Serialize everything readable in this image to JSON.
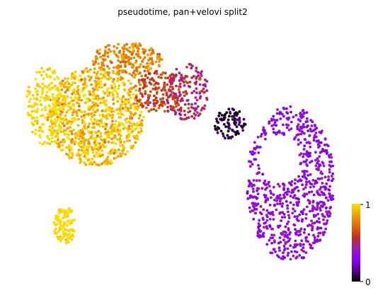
{
  "chart_data": {
    "type": "scatter",
    "title": "pseudotime, pan+velovi split2",
    "xlabel": "",
    "ylabel": "",
    "color_variable": "pseudotime",
    "color_range": [
      0,
      1
    ],
    "colormap": "gnuplot",
    "colorbar_ticks": [
      "0",
      "1"
    ],
    "colormap_stops": [
      "#000000",
      "#5a008f",
      "#8a00ff",
      "#a01ab0",
      "#c0301a",
      "#e06a00",
      "#f0a000",
      "#ffe000"
    ],
    "point_color_default": "#8a00ff",
    "clusters": [
      {
        "id": "upper-left-arm",
        "color_value": 0.92,
        "approx_points": 900
      },
      {
        "id": "lower-left-tip",
        "color_value": 0.99,
        "approx_points": 120
      },
      {
        "id": "left-yellow-edge",
        "color_value": 0.98,
        "approx_points": 200
      },
      {
        "id": "top-ridge",
        "color_value": 0.78,
        "approx_points": 220
      },
      {
        "id": "bridge-red",
        "color_value": 0.62,
        "approx_points": 160
      },
      {
        "id": "bridge-magenta",
        "color_value": 0.5,
        "approx_points": 160
      },
      {
        "id": "dark-root",
        "color_value": 0.05,
        "approx_points": 90
      },
      {
        "id": "right-purple-arm",
        "color_value": 0.33,
        "approx_points": 900
      }
    ],
    "grid": false,
    "axes_visible": false
  }
}
